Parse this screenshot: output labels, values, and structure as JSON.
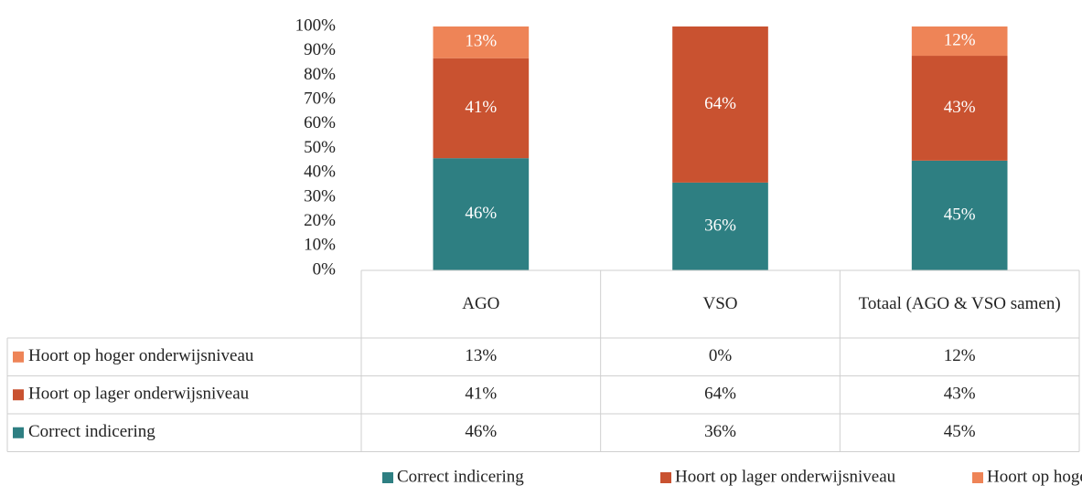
{
  "chart_data": {
    "type": "stacked_bar",
    "categories": [
      "AGO",
      "VSO",
      "Totaal (AGO & VSO samen)"
    ],
    "series": [
      {
        "name": "Correct indicering",
        "color": "#2e7f82",
        "values": [
          46,
          36,
          45
        ],
        "value_labels": [
          "46%",
          "36%",
          "45%"
        ]
      },
      {
        "name": "Hoort op lager onderwijsniveau",
        "color": "#c95230",
        "values": [
          41,
          64,
          43
        ],
        "value_labels": [
          "41%",
          "64%",
          "43%"
        ]
      },
      {
        "name": "Hoort op hoger onderwijsniveau",
        "color": "#ee8457",
        "values": [
          13,
          0,
          12
        ],
        "value_labels": [
          "13%",
          "0%",
          "12%"
        ]
      }
    ],
    "ylim": [
      0,
      100
    ],
    "yticks": [
      {
        "value": 0,
        "label": "0%"
      },
      {
        "value": 10,
        "label": "10%"
      },
      {
        "value": 20,
        "label": "20%"
      },
      {
        "value": 30,
        "label": "30%"
      },
      {
        "value": 40,
        "label": "40%"
      },
      {
        "value": 50,
        "label": "50%"
      },
      {
        "value": 60,
        "label": "60%"
      },
      {
        "value": 70,
        "label": "70%"
      },
      {
        "value": 80,
        "label": "80%"
      },
      {
        "value": 90,
        "label": "90%"
      },
      {
        "value": 100,
        "label": "100%"
      }
    ],
    "grid": false,
    "legend": "bottom"
  }
}
